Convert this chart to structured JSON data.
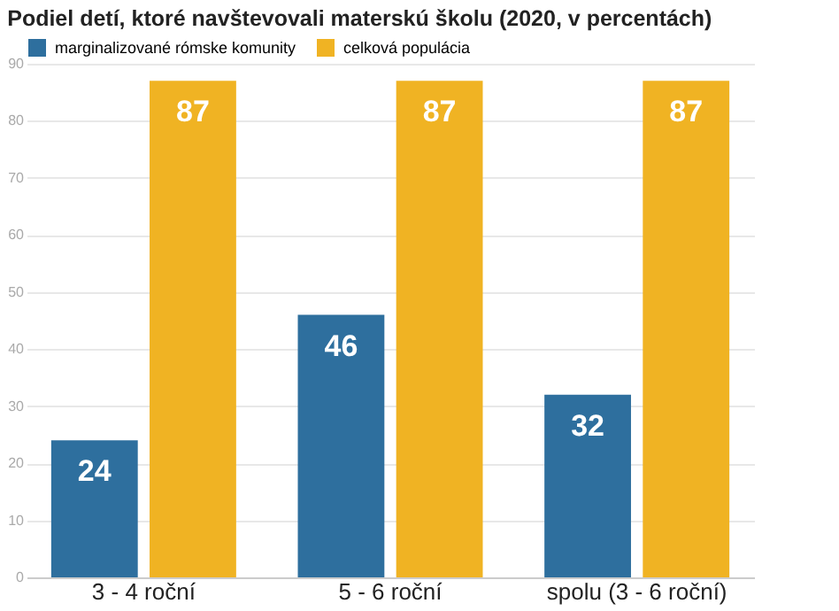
{
  "chart_data": {
    "type": "bar",
    "title": "Podiel detí, ktoré navštevovali materskú školu (2020, v percentách)",
    "categories": [
      "3 - 4 roční",
      "5 - 6 roční",
      "spolu (3 - 6 roční)"
    ],
    "series": [
      {
        "name": "marginalizované rómske komunity",
        "color": "#2e6f9e",
        "values": [
          24,
          46,
          32
        ]
      },
      {
        "name": "celková populácia",
        "color": "#f0b323",
        "values": [
          87,
          87,
          87
        ]
      }
    ],
    "ylim": [
      0,
      90
    ],
    "yticks": [
      0,
      10,
      20,
      30,
      40,
      50,
      60,
      70,
      80,
      90
    ],
    "grid": "y",
    "legend": "top left",
    "data_labels": true
  }
}
